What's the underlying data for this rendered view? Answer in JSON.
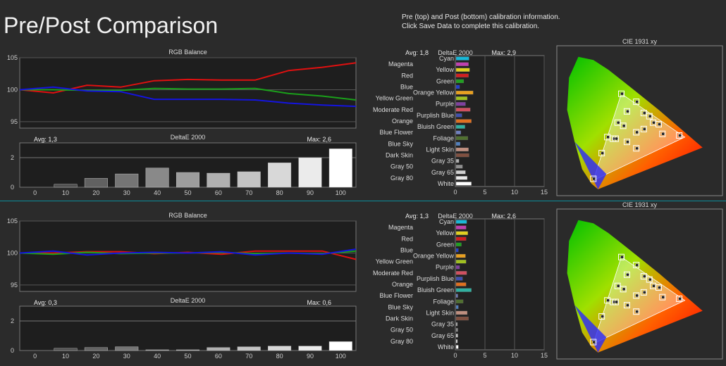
{
  "page": {
    "title": "Pre/Post Comparison",
    "info_line1": "Pre (top) and Post (bottom) calibration information.",
    "info_line2": "Click Save Data to complete this calibration."
  },
  "colors": {
    "red": "#e01010",
    "green": "#1aa01a",
    "blue": "#1414e0",
    "bar_dark": "#3a3a3a",
    "bar_light": "#ffffff"
  },
  "chart_data": [
    {
      "panel": "pre",
      "type": "line",
      "title": "RGB Balance",
      "ylim": [
        94,
        105
      ],
      "yticks": [
        95,
        100,
        105
      ],
      "x": [
        0,
        10,
        20,
        30,
        40,
        50,
        60,
        70,
        80,
        90,
        100
      ],
      "series": [
        {
          "color": "red",
          "values": [
            100,
            99.5,
            100.7,
            100.4,
            101.4,
            101.6,
            101.5,
            101.5,
            103.0,
            103.5,
            104.2
          ]
        },
        {
          "color": "green",
          "values": [
            100,
            100.0,
            99.9,
            99.9,
            100.2,
            100.1,
            100.1,
            100.2,
            99.4,
            99.0,
            98.4
          ]
        },
        {
          "color": "blue",
          "values": [
            100,
            100.4,
            99.8,
            99.7,
            98.5,
            98.5,
            98.5,
            98.4,
            97.9,
            97.6,
            97.4
          ]
        }
      ]
    },
    {
      "panel": "pre",
      "type": "bar",
      "title": "DeltaE 2000",
      "avg_label": "Avg: 1,3",
      "max_label": "Max: 2,6",
      "categories": [
        "0",
        "10",
        "20",
        "30",
        "40",
        "50",
        "60",
        "70",
        "80",
        "90",
        "100"
      ],
      "values": [
        0,
        0.2,
        0.6,
        0.9,
        1.3,
        1.0,
        0.95,
        1.05,
        1.65,
        2.0,
        2.6
      ],
      "ylim": [
        0,
        3
      ],
      "yticks": [
        0,
        2
      ]
    },
    {
      "panel": "pre",
      "type": "bar",
      "title": "DeltaE 2000",
      "orientation": "horizontal",
      "avg_label": "Avg: 1,8",
      "max_label": "Max: 2,9",
      "xlim": [
        0,
        15
      ],
      "xticks": [
        0,
        5,
        10,
        15
      ],
      "categories": [
        "Cyan",
        "Magenta",
        "Yellow",
        "Red",
        "Green",
        "Blue",
        "Orange Yellow",
        "Yellow Green",
        "Purple",
        "Moderate Red",
        "Purplish Blue",
        "Orange",
        "Bluish Green",
        "Blue Flower",
        "Foliage",
        "Blue Sky",
        "Light Skin",
        "Dark Skin",
        "Gray 35",
        "Gray 50",
        "Gray 65",
        "Gray 80",
        "White"
      ],
      "values": [
        2.2,
        2.1,
        2.3,
        2.1,
        1.3,
        0.6,
        2.9,
        1.9,
        1.6,
        2.4,
        1.0,
        2.6,
        1.5,
        0.8,
        2.0,
        0.7,
        2.1,
        2.2,
        0.5,
        1.1,
        1.6,
        1.9,
        2.6
      ],
      "bar_colors": [
        "#19b8d8",
        "#c040b0",
        "#e0d020",
        "#d02020",
        "#20a020",
        "#2040d0",
        "#e8a020",
        "#a0c020",
        "#8040a0",
        "#d05060",
        "#4050b0",
        "#e07020",
        "#30b0a0",
        "#7080c0",
        "#507030",
        "#5080c0",
        "#c09080",
        "#805040",
        "#b0b0b0",
        "#909090",
        "#d0d0d0",
        "#e8e8e8",
        "#ffffff"
      ]
    },
    {
      "panel": "pre",
      "type": "scatter",
      "title": "CIE 1931 xy",
      "points": [
        {
          "x": 0.225,
          "y": 0.33
        },
        {
          "x": 0.255,
          "y": 0.32
        },
        {
          "x": 0.27,
          "y": 0.32
        },
        {
          "x": 0.33,
          "y": 0.3
        },
        {
          "x": 0.195,
          "y": 0.23
        },
        {
          "x": 0.15,
          "y": 0.07
        },
        {
          "x": 0.3,
          "y": 0.6
        },
        {
          "x": 0.38,
          "y": 0.55
        },
        {
          "x": 0.31,
          "y": 0.4
        },
        {
          "x": 0.42,
          "y": 0.48
        },
        {
          "x": 0.47,
          "y": 0.42
        },
        {
          "x": 0.52,
          "y": 0.35
        },
        {
          "x": 0.61,
          "y": 0.34
        },
        {
          "x": 0.38,
          "y": 0.36
        },
        {
          "x": 0.42,
          "y": 0.38
        },
        {
          "x": 0.45,
          "y": 0.46
        },
        {
          "x": 0.5,
          "y": 0.41
        },
        {
          "x": 0.38,
          "y": 0.26
        },
        {
          "x": 0.33,
          "y": 0.49
        },
        {
          "x": 0.28,
          "y": 0.42
        }
      ]
    },
    {
      "panel": "post",
      "type": "line",
      "title": "RGB Balance",
      "ylim": [
        94,
        105
      ],
      "yticks": [
        95,
        100,
        105
      ],
      "x": [
        0,
        10,
        20,
        30,
        40,
        50,
        60,
        70,
        80,
        90,
        100
      ],
      "series": [
        {
          "color": "red",
          "values": [
            100,
            100.0,
            100.2,
            100.2,
            99.9,
            100.1,
            99.8,
            100.3,
            100.3,
            100.3,
            99.0
          ]
        },
        {
          "color": "green",
          "values": [
            100,
            99.8,
            100.1,
            99.9,
            100.0,
            100.0,
            100.1,
            99.9,
            100.0,
            99.9,
            100.3
          ]
        },
        {
          "color": "blue",
          "values": [
            100,
            100.3,
            99.7,
            100.0,
            100.1,
            100.0,
            100.2,
            99.7,
            100.0,
            99.8,
            100.6
          ]
        }
      ]
    },
    {
      "panel": "post",
      "type": "bar",
      "title": "DeltaE 2000",
      "avg_label": "Avg: 0,3",
      "max_label": "Max: 0,6",
      "categories": [
        "0",
        "10",
        "20",
        "30",
        "40",
        "50",
        "60",
        "70",
        "80",
        "90",
        "100"
      ],
      "values": [
        0,
        0.15,
        0.2,
        0.25,
        0.05,
        0.05,
        0.2,
        0.25,
        0.3,
        0.3,
        0.6
      ],
      "ylim": [
        0,
        3
      ],
      "yticks": [
        0,
        2
      ]
    },
    {
      "panel": "post",
      "type": "bar",
      "title": "DeltaE 2000",
      "orientation": "horizontal",
      "avg_label": "Avg: 1,3",
      "max_label": "Max: 2,6",
      "xlim": [
        0,
        15
      ],
      "xticks": [
        0,
        5,
        10,
        15
      ],
      "categories": [
        "Cyan",
        "Magenta",
        "Yellow",
        "Red",
        "Green",
        "Blue",
        "Orange Yellow",
        "Yellow Green",
        "Purple",
        "Moderate Red",
        "Purplish Blue",
        "Orange",
        "Bluish Green",
        "Blue Flower",
        "Foliage",
        "Blue Sky",
        "Light Skin",
        "Dark Skin",
        "Gray 35",
        "Gray 50",
        "Gray 65",
        "Gray 80",
        "White"
      ],
      "values": [
        1.8,
        1.7,
        2.0,
        1.7,
        0.9,
        0.4,
        1.6,
        1.7,
        0.6,
        1.8,
        1.1,
        1.7,
        2.6,
        0.3,
        1.2,
        0.4,
        1.9,
        2.1,
        0.2,
        0.3,
        0.3,
        0.2,
        0.4
      ],
      "bar_colors": [
        "#19b8d8",
        "#c040b0",
        "#e0d020",
        "#d02020",
        "#20a020",
        "#2040d0",
        "#e8a020",
        "#a0c020",
        "#8040a0",
        "#d05060",
        "#4050b0",
        "#e07020",
        "#30b0a0",
        "#7080c0",
        "#507030",
        "#5080c0",
        "#c09080",
        "#805040",
        "#b0b0b0",
        "#909090",
        "#d0d0d0",
        "#e8e8e8",
        "#ffffff"
      ]
    },
    {
      "panel": "post",
      "type": "scatter",
      "title": "CIE 1931 xy",
      "points": [
        {
          "x": 0.225,
          "y": 0.33
        },
        {
          "x": 0.255,
          "y": 0.32
        },
        {
          "x": 0.27,
          "y": 0.32
        },
        {
          "x": 0.33,
          "y": 0.3
        },
        {
          "x": 0.195,
          "y": 0.23
        },
        {
          "x": 0.15,
          "y": 0.07
        },
        {
          "x": 0.3,
          "y": 0.6
        },
        {
          "x": 0.38,
          "y": 0.55
        },
        {
          "x": 0.31,
          "y": 0.4
        },
        {
          "x": 0.42,
          "y": 0.48
        },
        {
          "x": 0.47,
          "y": 0.42
        },
        {
          "x": 0.52,
          "y": 0.35
        },
        {
          "x": 0.61,
          "y": 0.34
        },
        {
          "x": 0.38,
          "y": 0.36
        },
        {
          "x": 0.42,
          "y": 0.38
        },
        {
          "x": 0.45,
          "y": 0.46
        },
        {
          "x": 0.5,
          "y": 0.41
        },
        {
          "x": 0.38,
          "y": 0.26
        },
        {
          "x": 0.33,
          "y": 0.49
        },
        {
          "x": 0.28,
          "y": 0.42
        }
      ]
    }
  ]
}
